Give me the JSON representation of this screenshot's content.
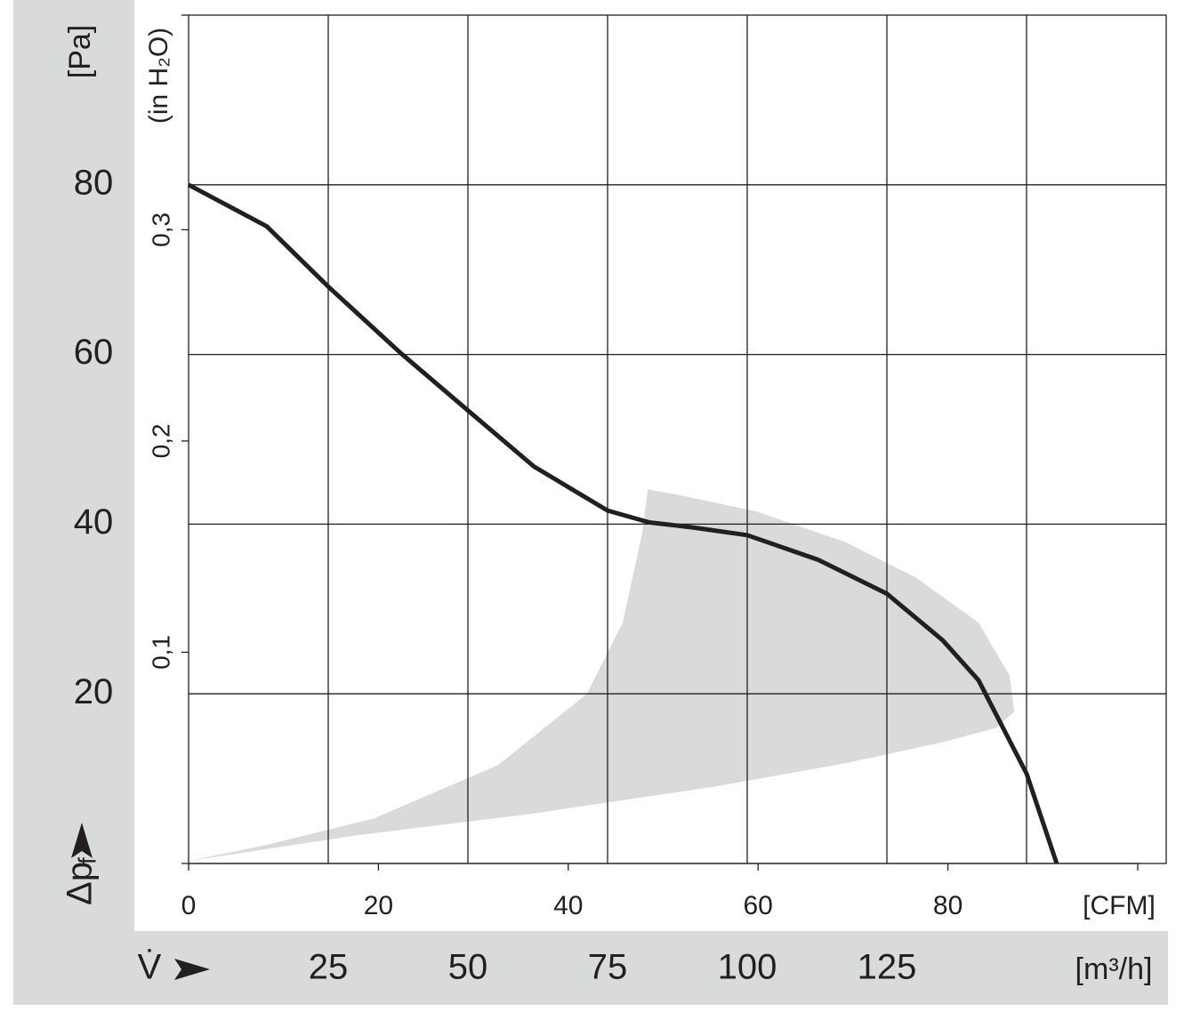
{
  "chart_data": {
    "type": "line",
    "y_unit": "[Pa]",
    "y2_unit": "(in H₂O)",
    "x_unit": "[m³/h]",
    "x2_unit": "[CFM]",
    "x_label": "V̇",
    "y_label": {
      "main": "Δp",
      "sub": "f"
    },
    "xlim": [
      0,
      175
    ],
    "ylim": [
      0,
      100
    ],
    "xticks": [
      25,
      50,
      75,
      100,
      125,
      {
        "value": 150,
        "label": null
      }
    ],
    "yticks": [
      20,
      40,
      60,
      80
    ],
    "x2lim": [
      0,
      103
    ],
    "x2ticks": [
      0,
      20,
      40,
      60,
      80,
      {
        "value": 100,
        "label": null
      }
    ],
    "y2lim": [
      0,
      0.4016
    ],
    "y2ticks": [
      {
        "value": 0.1,
        "label": "0,1"
      },
      {
        "value": 0.2,
        "label": "0,2"
      },
      {
        "value": 0.3,
        "label": "0,3"
      }
    ],
    "grid": true,
    "series": [
      {
        "type": "area",
        "color": "#d9dadb",
        "x": [
          0,
          29.9,
          61.8,
          93.6,
          117.5,
          135,
          144.6,
          147.8,
          147.0,
          141.4,
          130.2,
          117.5,
          101.6,
          87.3,
          82.2,
          81.2,
          77.7,
          71.3,
          55.4,
          33.1,
          14.0
        ],
        "values": [
          0.3,
          3.3,
          5.9,
          9.0,
          11.8,
          14.3,
          16.0,
          17.9,
          22.1,
          28.4,
          33.7,
          37.9,
          41.5,
          43.5,
          44.1,
          38.9,
          28.4,
          20.0,
          11.6,
          5.3,
          2.2
        ]
      },
      {
        "type": "line",
        "color": "#231f20",
        "x": [
          0,
          14,
          25,
          37.9,
          50,
          61.8,
          75,
          82.5,
          90.4,
          100,
          112.7,
          125,
          135,
          141.4,
          150,
          155.4
        ],
        "values": [
          80,
          75.1,
          68,
          60.2,
          53.4,
          46.8,
          41.6,
          40.2,
          39.6,
          38.7,
          35.8,
          31.8,
          26.3,
          21.6,
          10.6,
          0
        ]
      }
    ]
  }
}
